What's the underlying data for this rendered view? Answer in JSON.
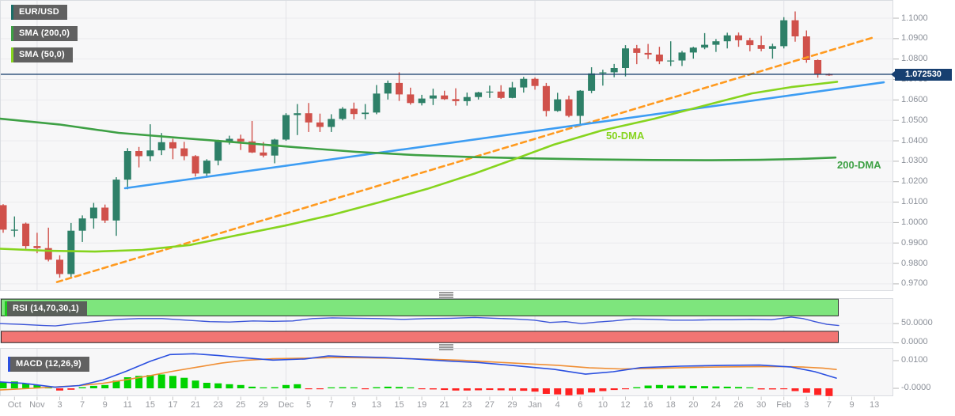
{
  "title": {
    "symbol": "EUR/USD",
    "sma200": "SMA (200,0)",
    "sma50": "SMA (50,0)"
  },
  "annotations": {
    "dma50": "50-DMA",
    "dma200": "200-DMA"
  },
  "price_axis": {
    "tick_labels": [
      "1.1000",
      "1.0900",
      "1.0800",
      "1.0700",
      "1.0600",
      "1.0500",
      "1.0400",
      "1.0300",
      "1.0200",
      "1.0100",
      "1.0000",
      "0.9900",
      "0.9800",
      "0.9700"
    ],
    "tick_values": [
      1.1,
      1.09,
      1.08,
      1.07,
      1.06,
      1.05,
      1.04,
      1.03,
      1.02,
      1.01,
      1.0,
      0.99,
      0.98,
      0.97
    ],
    "current_price_label": "1.072530",
    "current_price": 1.07253
  },
  "rsi_panel": {
    "label": "RSI (14,70,30,1)",
    "tick_labels": [
      "50.0000",
      "0.0000"
    ],
    "tick_values": [
      50,
      0
    ]
  },
  "macd_panel": {
    "label": "MACD (12,26,9)",
    "tick_labels": [
      "0.0100",
      "-0.0000"
    ],
    "tick_values": [
      0.01,
      0
    ]
  },
  "x_axis": {
    "tick_labels": [
      "Oct",
      "Nov",
      "3",
      "7",
      "9",
      "11",
      "15",
      "17",
      "21",
      "23",
      "25",
      "29",
      "Dec",
      "5",
      "7",
      "9",
      "13",
      "15",
      "19",
      "21",
      "23",
      "27",
      "29",
      "Jan",
      "4",
      "6",
      "10",
      "12",
      "16",
      "18",
      "20",
      "24",
      "26",
      "30",
      "Feb",
      "3",
      "7",
      "9",
      "13"
    ],
    "tick_indices": [
      1,
      3,
      5,
      7,
      9,
      11,
      13,
      15,
      17,
      19,
      21,
      23,
      25,
      27,
      29,
      31,
      33,
      35,
      37,
      39,
      41,
      43,
      45,
      47,
      49,
      51,
      53,
      55,
      57,
      59,
      61,
      63,
      65,
      67,
      69,
      71,
      73,
      75,
      77
    ],
    "month_start_indices": [
      3,
      25,
      47,
      69
    ]
  },
  "colors": {
    "bull": "#2e8068",
    "bear": "#d0514b",
    "sma200": "#3da044",
    "sma50": "#86d41e",
    "trend_blue": "#3d9df3",
    "trend_orange": "#ff9a1f",
    "price_line": "#1e4470",
    "price_badge_bg": "#173f70",
    "rsi_line": "#3c55d8",
    "band_green": "#7ee57d",
    "band_red": "#f27573",
    "band_border": "#2a2a2a",
    "macd_line": "#2b50e0",
    "macd_signal": "#f08f35",
    "hist_pos": "#00d300",
    "hist_neg": "#ff2222",
    "accent_symbol": "#1a6f68",
    "accent_rsi": "#1ecb1e",
    "panel_bg": "#f7f7f8",
    "panel_border": "#d9dce1",
    "grid": "#ebebee",
    "grid_month": "#e2e2e6",
    "axis_text": "#8a8f98"
  },
  "chart_data": [
    {
      "type": "candlestick",
      "name": "EUR/USD daily",
      "ylim": [
        0.9665,
        1.1089
      ],
      "dates": [
        "Oct 27",
        "Oct 28",
        "Oct 31",
        "Nov 1",
        "Nov 2",
        "Nov 3",
        "Nov 4",
        "Nov 7",
        "Nov 8",
        "Nov 9",
        "Nov 10",
        "Nov 11",
        "Nov 14",
        "Nov 15",
        "Nov 16",
        "Nov 17",
        "Nov 18",
        "Nov 21",
        "Nov 22",
        "Nov 23",
        "Nov 24",
        "Nov 25",
        "Nov 28",
        "Nov 29",
        "Nov 30",
        "Dec 1",
        "Dec 2",
        "Dec 5",
        "Dec 6",
        "Dec 7",
        "Dec 8",
        "Dec 9",
        "Dec 12",
        "Dec 13",
        "Dec 14",
        "Dec 15",
        "Dec 16",
        "Dec 19",
        "Dec 20",
        "Dec 21",
        "Dec 22",
        "Dec 23",
        "Dec 26",
        "Dec 27",
        "Dec 28",
        "Dec 29",
        "Dec 30",
        "Jan 2",
        "Jan 3",
        "Jan 4",
        "Jan 5",
        "Jan 6",
        "Jan 9",
        "Jan 10",
        "Jan 11",
        "Jan 12",
        "Jan 13",
        "Jan 16",
        "Jan 17",
        "Jan 18",
        "Jan 19",
        "Jan 20",
        "Jan 23",
        "Jan 24",
        "Jan 25",
        "Jan 26",
        "Jan 27",
        "Jan 30",
        "Jan 31",
        "Feb 1",
        "Feb 2",
        "Feb 3",
        "Feb 6",
        "Feb 7"
      ],
      "open": [
        1.0085,
        0.996,
        0.9995,
        0.9885,
        0.9875,
        0.9818,
        0.9748,
        0.996,
        1.002,
        1.0073,
        1.001,
        1.021,
        1.035,
        1.0325,
        1.0353,
        1.0393,
        1.0363,
        1.0325,
        1.024,
        1.0303,
        1.0397,
        1.041,
        1.0397,
        1.0343,
        1.0328,
        1.0406,
        1.0526,
        1.0535,
        1.049,
        1.0468,
        1.0507,
        1.0557,
        1.0531,
        1.0538,
        1.0631,
        1.0683,
        1.0627,
        1.0585,
        1.0607,
        1.0622,
        1.0604,
        1.0594,
        1.0614,
        1.0637,
        1.0641,
        1.061,
        1.0661,
        1.0703,
        1.0668,
        1.0546,
        1.0603,
        1.0522,
        1.0645,
        1.073,
        1.0735,
        1.0756,
        1.0852,
        1.083,
        1.0822,
        1.0789,
        1.0793,
        1.0832,
        1.0856,
        1.087,
        1.0887,
        1.0916,
        1.0892,
        1.0868,
        1.085,
        1.0863,
        1.099,
        1.0911,
        1.0795,
        1.0725
      ],
      "high": [
        1.009,
        1.003,
        1.0,
        0.995,
        0.9975,
        0.984,
        0.9998,
        1.0035,
        1.0096,
        1.0088,
        1.0222,
        1.0364,
        1.037,
        1.0481,
        1.0438,
        1.041,
        1.0395,
        1.033,
        1.031,
        1.0405,
        1.0425,
        1.043,
        1.0497,
        1.0394,
        1.041,
        1.0535,
        1.058,
        1.0585,
        1.0533,
        1.053,
        1.0565,
        1.0587,
        1.058,
        1.0673,
        1.0695,
        1.0735,
        1.066,
        1.0625,
        1.0655,
        1.0645,
        1.0657,
        1.0636,
        1.064,
        1.067,
        1.0672,
        1.0688,
        1.0713,
        1.071,
        1.0683,
        1.0635,
        1.0621,
        1.0648,
        1.076,
        1.0748,
        1.0776,
        1.0868,
        1.0869,
        1.0874,
        1.086,
        1.0887,
        1.084,
        1.086,
        1.0927,
        1.0898,
        1.0929,
        1.093,
        1.0904,
        1.0914,
        1.0875,
        1.1005,
        1.1033,
        1.094,
        1.0798,
        1.073
      ],
      "low": [
        0.995,
        0.993,
        0.9872,
        0.985,
        0.981,
        0.973,
        0.973,
        0.9905,
        0.997,
        0.9998,
        0.9935,
        1.0163,
        1.027,
        1.03,
        1.033,
        1.031,
        1.0305,
        1.0225,
        1.022,
        1.028,
        1.0382,
        1.0355,
        1.034,
        1.0319,
        1.029,
        1.04,
        1.0428,
        1.0443,
        1.0443,
        1.0443,
        1.05,
        1.0505,
        1.0505,
        1.053,
        1.0602,
        1.0595,
        1.0577,
        1.0573,
        1.0575,
        1.06,
        1.0572,
        1.0572,
        1.0602,
        1.061,
        1.0605,
        1.0608,
        1.0636,
        1.065,
        1.0519,
        1.0542,
        1.0515,
        1.0483,
        1.0633,
        1.067,
        1.0711,
        1.0715,
        1.0775,
        1.08,
        1.0775,
        1.0766,
        1.0766,
        1.0802,
        1.0848,
        1.0835,
        1.0852,
        1.086,
        1.0838,
        1.0838,
        1.0802,
        1.0852,
        1.0885,
        1.0782,
        1.0709,
        1.0718
      ],
      "close": [
        0.9965,
        0.9965,
        0.9885,
        0.9875,
        0.9818,
        0.9748,
        0.996,
        1.002,
        1.0073,
        1.001,
        1.021,
        1.035,
        1.0325,
        1.0353,
        1.0393,
        1.0363,
        1.0325,
        1.024,
        1.0303,
        1.0397,
        1.041,
        1.0397,
        1.0343,
        1.0328,
        1.0406,
        1.0526,
        1.0535,
        1.049,
        1.0468,
        1.0507,
        1.0557,
        1.0531,
        1.0538,
        1.0631,
        1.0683,
        1.0627,
        1.0585,
        1.0607,
        1.0622,
        1.0604,
        1.0594,
        1.0614,
        1.0637,
        1.0641,
        1.061,
        1.0661,
        1.0703,
        1.0668,
        1.0546,
        1.0603,
        1.0522,
        1.0645,
        1.073,
        1.0735,
        1.0756,
        1.0852,
        1.083,
        1.0822,
        1.0789,
        1.0793,
        1.0832,
        1.0856,
        1.087,
        1.0887,
        1.0916,
        1.0892,
        1.0868,
        1.085,
        1.0863,
        1.099,
        1.0911,
        1.0795,
        1.0725,
        1.0724
      ],
      "overlays": {
        "sma200_points": [
          [
            0,
            1.0508
          ],
          [
            75,
            1.048
          ],
          [
            150,
            1.0439
          ],
          [
            225,
            1.0415
          ],
          [
            300,
            1.0392
          ],
          [
            375,
            1.0368
          ],
          [
            450,
            1.0346
          ],
          [
            525,
            1.033
          ],
          [
            600,
            1.032
          ],
          [
            675,
            1.0314
          ],
          [
            750,
            1.0309
          ],
          [
            825,
            1.0306
          ],
          [
            900,
            1.0305
          ],
          [
            960,
            1.0307
          ],
          [
            1010,
            1.0311
          ],
          [
            1056,
            1.0318
          ]
        ],
        "sma50_points": [
          [
            0,
            0.9872
          ],
          [
            60,
            0.9862
          ],
          [
            120,
            0.9858
          ],
          [
            180,
            0.9866
          ],
          [
            240,
            0.989
          ],
          [
            300,
            0.9938
          ],
          [
            360,
            0.9985
          ],
          [
            420,
            1.0038
          ],
          [
            480,
            1.01
          ],
          [
            540,
            1.0165
          ],
          [
            600,
            1.024
          ],
          [
            650,
            1.031
          ],
          [
            700,
            1.0381
          ],
          [
            760,
            1.045
          ],
          [
            827,
            1.0508
          ],
          [
            890,
            1.0572
          ],
          [
            950,
            1.0632
          ],
          [
            1000,
            1.0663
          ],
          [
            1058,
            1.0689
          ]
        ],
        "trendline_blue": [
          [
            158,
            1.0168
          ],
          [
            1117,
            1.0686
          ]
        ],
        "trendline_orange_dashed": [
          [
            72,
            0.9709
          ],
          [
            1105,
            1.0907
          ]
        ],
        "current_price_line": 1.07253
      }
    },
    {
      "type": "line",
      "name": "RSI (14,70,30,1)",
      "ylim": [
        0,
        100
      ],
      "bands": {
        "overbought": 70,
        "oversold": 30
      },
      "points": [
        [
          0,
          50
        ],
        [
          25,
          48
        ],
        [
          55,
          45
        ],
        [
          70,
          44
        ],
        [
          95,
          50
        ],
        [
          120,
          55
        ],
        [
          150,
          61
        ],
        [
          175,
          63
        ],
        [
          205,
          63
        ],
        [
          235,
          59
        ],
        [
          265,
          55
        ],
        [
          290,
          54
        ],
        [
          320,
          57
        ],
        [
          345,
          56
        ],
        [
          370,
          57
        ],
        [
          395,
          63
        ],
        [
          420,
          65
        ],
        [
          450,
          64
        ],
        [
          480,
          63
        ],
        [
          510,
          61
        ],
        [
          540,
          63
        ],
        [
          570,
          64
        ],
        [
          600,
          66
        ],
        [
          625,
          64
        ],
        [
          650,
          62
        ],
        [
          675,
          59
        ],
        [
          695,
          53
        ],
        [
          715,
          55
        ],
        [
          735,
          50
        ],
        [
          755,
          54
        ],
        [
          775,
          57
        ],
        [
          800,
          62
        ],
        [
          825,
          61
        ],
        [
          850,
          59
        ],
        [
          875,
          59
        ],
        [
          900,
          60
        ],
        [
          925,
          60
        ],
        [
          950,
          61
        ],
        [
          975,
          60
        ],
        [
          1000,
          67
        ],
        [
          1015,
          63
        ],
        [
          1030,
          55
        ],
        [
          1045,
          48
        ],
        [
          1060,
          45
        ]
      ]
    },
    {
      "type": "macd",
      "name": "MACD (12,26,9)",
      "ylim": [
        -0.0031,
        0.0146
      ],
      "macd_points": [
        [
          0,
          0.0023
        ],
        [
          30,
          0.0018
        ],
        [
          70,
          0.0004
        ],
        [
          100,
          0.001
        ],
        [
          130,
          0.003
        ],
        [
          160,
          0.0062
        ],
        [
          190,
          0.0098
        ],
        [
          215,
          0.0122
        ],
        [
          245,
          0.0125
        ],
        [
          275,
          0.0119
        ],
        [
          305,
          0.0111
        ],
        [
          345,
          0.0102
        ],
        [
          385,
          0.0106
        ],
        [
          415,
          0.0117
        ],
        [
          445,
          0.0114
        ],
        [
          485,
          0.0111
        ],
        [
          525,
          0.0106
        ],
        [
          565,
          0.0099
        ],
        [
          605,
          0.0093
        ],
        [
          650,
          0.0082
        ],
        [
          700,
          0.0069
        ],
        [
          740,
          0.0051
        ],
        [
          775,
          0.006
        ],
        [
          810,
          0.0075
        ],
        [
          860,
          0.008
        ],
        [
          920,
          0.0083
        ],
        [
          960,
          0.0084
        ],
        [
          1000,
          0.0077
        ],
        [
          1030,
          0.006
        ],
        [
          1057,
          0.0037
        ]
      ],
      "signal_points": [
        [
          0,
          -0.0006
        ],
        [
          40,
          0.0
        ],
        [
          70,
          0.0005
        ],
        [
          100,
          0.001
        ],
        [
          130,
          0.0018
        ],
        [
          160,
          0.0031
        ],
        [
          190,
          0.0046
        ],
        [
          215,
          0.006
        ],
        [
          250,
          0.0077
        ],
        [
          280,
          0.0091
        ],
        [
          310,
          0.0101
        ],
        [
          345,
          0.0107
        ],
        [
          385,
          0.0109
        ],
        [
          425,
          0.0111
        ],
        [
          465,
          0.011
        ],
        [
          505,
          0.0108
        ],
        [
          545,
          0.0105
        ],
        [
          585,
          0.0101
        ],
        [
          625,
          0.0095
        ],
        [
          665,
          0.0089
        ],
        [
          705,
          0.0083
        ],
        [
          745,
          0.0074
        ],
        [
          785,
          0.007
        ],
        [
          825,
          0.0072
        ],
        [
          865,
          0.0075
        ],
        [
          905,
          0.0077
        ],
        [
          945,
          0.0078
        ],
        [
          985,
          0.0079
        ],
        [
          1015,
          0.0077
        ],
        [
          1040,
          0.0073
        ],
        [
          1057,
          0.0068
        ]
      ],
      "histogram": [
        0.0022,
        0.0025,
        0.0018,
        0.0012,
        0.0005,
        -0.0008,
        -0.0005,
        0.0004,
        0.0009,
        0.0012,
        0.0028,
        0.004,
        0.0045,
        0.0048,
        0.005,
        0.0045,
        0.0038,
        0.0028,
        0.002,
        0.0018,
        0.0015,
        0.0012,
        0.0006,
        0.0002,
        0.0004,
        0.0012,
        0.0015,
        -0.0003,
        -0.0003,
        0.0002,
        0.0004,
        0.0003,
        -0.0002,
        0.0004,
        0.0006,
        0.0005,
        0.0002,
        -0.0003,
        -0.0004,
        -0.0006,
        -0.0008,
        -0.0008,
        -0.0007,
        -0.0006,
        -0.0007,
        -0.0008,
        -0.0009,
        -0.0012,
        -0.002,
        -0.0022,
        -0.0025,
        -0.0022,
        -0.0015,
        -0.001,
        -0.0006,
        -0.0001,
        0.0004,
        0.001,
        0.0012,
        0.001,
        0.001,
        0.0009,
        0.0008,
        0.0007,
        0.0006,
        0.0005,
        0.0003,
        -0.0004,
        -0.0004,
        -0.0002,
        -0.001,
        -0.0016,
        -0.0024,
        -0.0028
      ]
    }
  ]
}
